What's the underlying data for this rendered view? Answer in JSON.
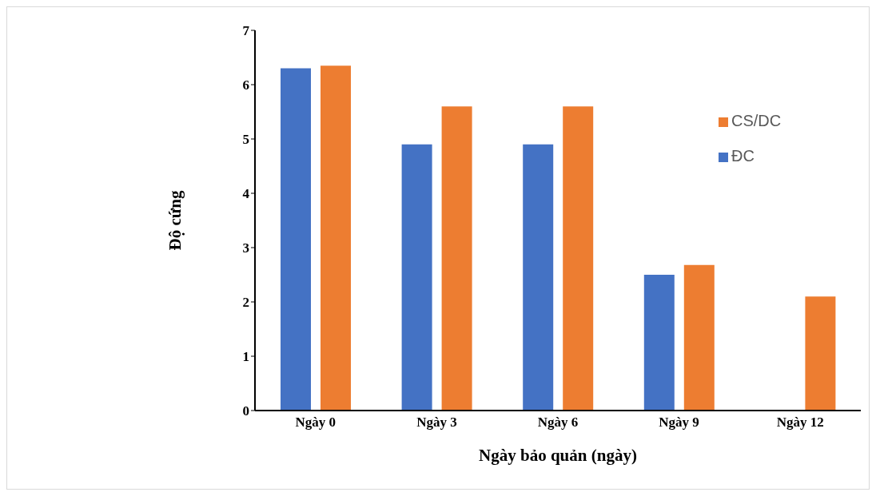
{
  "chart_data": {
    "type": "bar",
    "xlabel": "Ngày bảo quản (ngày)",
    "ylabel": "Độ cứng",
    "categories": [
      "Ngày 0",
      "Ngày 3",
      "Ngày 6",
      "Ngày 9",
      "Ngày 12"
    ],
    "series": [
      {
        "name": "ĐC",
        "color": "#4472c4",
        "values": [
          6.3,
          4.9,
          4.9,
          2.5,
          null
        ]
      },
      {
        "name": "CS/DC",
        "color": "#ed7d31",
        "values": [
          6.35,
          5.6,
          5.6,
          2.68,
          2.1
        ]
      }
    ],
    "ylim": [
      0,
      7
    ],
    "yticks": [
      0,
      1,
      2,
      3,
      4,
      5,
      6,
      7
    ],
    "grid": false,
    "legend": "right"
  }
}
